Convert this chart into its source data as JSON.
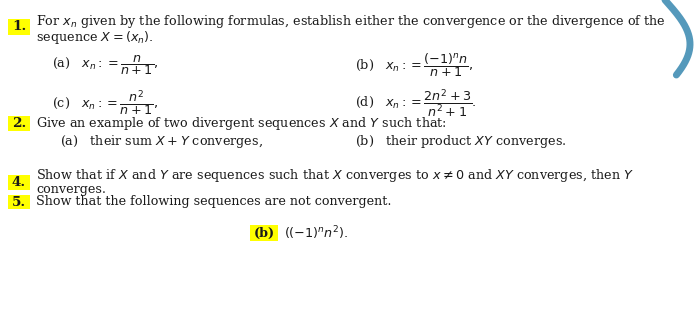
{
  "background_color": "#ffffff",
  "text_color": "#1a1a1a",
  "highlight_yellow": "#FFFF00",
  "fig_width": 7.0,
  "fig_height": 3.13,
  "dpi": 100,
  "item1_line1": "For $x_n$ given by the following formulas, establish either the convergence or the divergence of the",
  "item1_line2": "sequence $X = (x_n).$",
  "item1a": "(a)   $x_n :=\\dfrac{n}{n+1},$",
  "item1b": "(b)   $x_n :=\\dfrac{(-1)^n n}{n+1},$",
  "item1c": "(c)   $x_n :=\\dfrac{n^2}{n+1},$",
  "item1d": "(d)   $x_n :=\\dfrac{2n^2+3}{n^2+1}.$",
  "item2_line1": "Give an example of two divergent sequences $X$ and $Y$ such that:",
  "item2a": "(a)   their sum $X + Y$ converges,",
  "item2b": "(b)   their product $XY$ converges.",
  "item4_line1": "Show that if $X$ and $Y$ are sequences such that $X$ converges to $x \\neq 0$ and $XY$ converges, then $Y$",
  "item4_line2": "converges.",
  "item5_line1": "Show that the following sequences are not convergent.",
  "item5b_label": "(b)",
  "item5b_expr": "$((-1)^n n^2).$",
  "blue_color": "#5599bb",
  "fs": 9.2
}
